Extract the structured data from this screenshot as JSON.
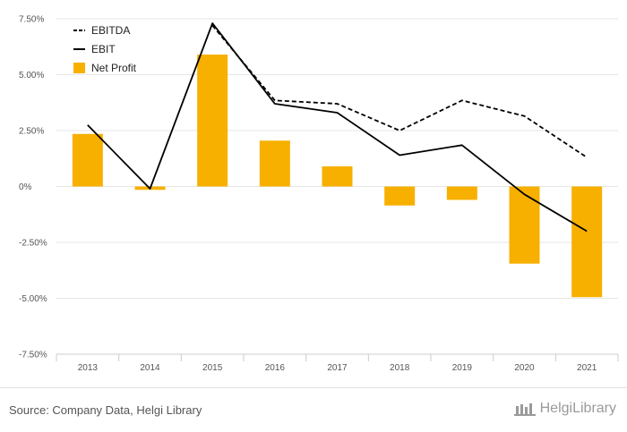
{
  "chart_data": {
    "type": "bar",
    "categories": [
      "2013",
      "2014",
      "2015",
      "2016",
      "2017",
      "2018",
      "2019",
      "2020",
      "2021"
    ],
    "y_ticks": [
      "7.50%",
      "5.00%",
      "2.50%",
      "0%",
      "-2.50%",
      "-5.00%",
      "-7.50%"
    ],
    "ylim": [
      -7.5,
      7.5
    ],
    "grid": true,
    "legend_position": "top-left",
    "series": [
      {
        "name": "EBITDA",
        "kind": "line",
        "style": "dashed",
        "color": "#000000",
        "values": [
          null,
          null,
          7.2,
          3.85,
          3.7,
          2.5,
          3.85,
          3.15,
          1.3
        ]
      },
      {
        "name": "EBIT",
        "kind": "line",
        "style": "solid",
        "color": "#000000",
        "values": [
          2.75,
          -0.1,
          7.3,
          3.7,
          3.3,
          1.4,
          1.85,
          -0.35,
          -2.0
        ]
      },
      {
        "name": "Net Profit",
        "kind": "bar",
        "color": "#f7b000",
        "values": [
          2.35,
          -0.15,
          5.9,
          2.05,
          0.9,
          -0.85,
          -0.6,
          -3.45,
          -4.95
        ]
      }
    ]
  },
  "footer": {
    "source": "Source: Company Data, Helgi Library",
    "brand": "HelgiLibrary"
  }
}
